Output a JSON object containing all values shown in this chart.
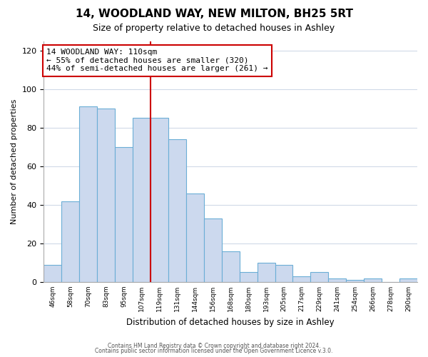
{
  "title1": "14, WOODLAND WAY, NEW MILTON, BH25 5RT",
  "title2": "Size of property relative to detached houses in Ashley",
  "xlabel": "Distribution of detached houses by size in Ashley",
  "ylabel": "Number of detached properties",
  "bar_labels": [
    "46sqm",
    "58sqm",
    "70sqm",
    "83sqm",
    "95sqm",
    "107sqm",
    "119sqm",
    "131sqm",
    "144sqm",
    "156sqm",
    "168sqm",
    "180sqm",
    "193sqm",
    "205sqm",
    "217sqm",
    "229sqm",
    "241sqm",
    "254sqm",
    "266sqm",
    "278sqm",
    "290sqm"
  ],
  "bar_values": [
    9,
    42,
    91,
    90,
    70,
    85,
    85,
    74,
    46,
    33,
    16,
    5,
    10,
    9,
    3,
    5,
    2,
    1,
    2,
    0,
    2
  ],
  "bar_color": "#ccd9ee",
  "bar_edge_color": "#6baed6",
  "vline_x_index": 6,
  "vline_color": "#cc0000",
  "annotation_title": "14 WOODLAND WAY: 110sqm",
  "annotation_line1": "← 55% of detached houses are smaller (320)",
  "annotation_line2": "44% of semi-detached houses are larger (261) →",
  "box_edge_color": "#cc0000",
  "ylim": [
    0,
    125
  ],
  "yticks": [
    0,
    20,
    40,
    60,
    80,
    100,
    120
  ],
  "footer1": "Contains HM Land Registry data © Crown copyright and database right 2024.",
  "footer2": "Contains public sector information licensed under the Open Government Licence v.3.0.",
  "bg_color": "#ffffff",
  "grid_color": "#d0dae8"
}
